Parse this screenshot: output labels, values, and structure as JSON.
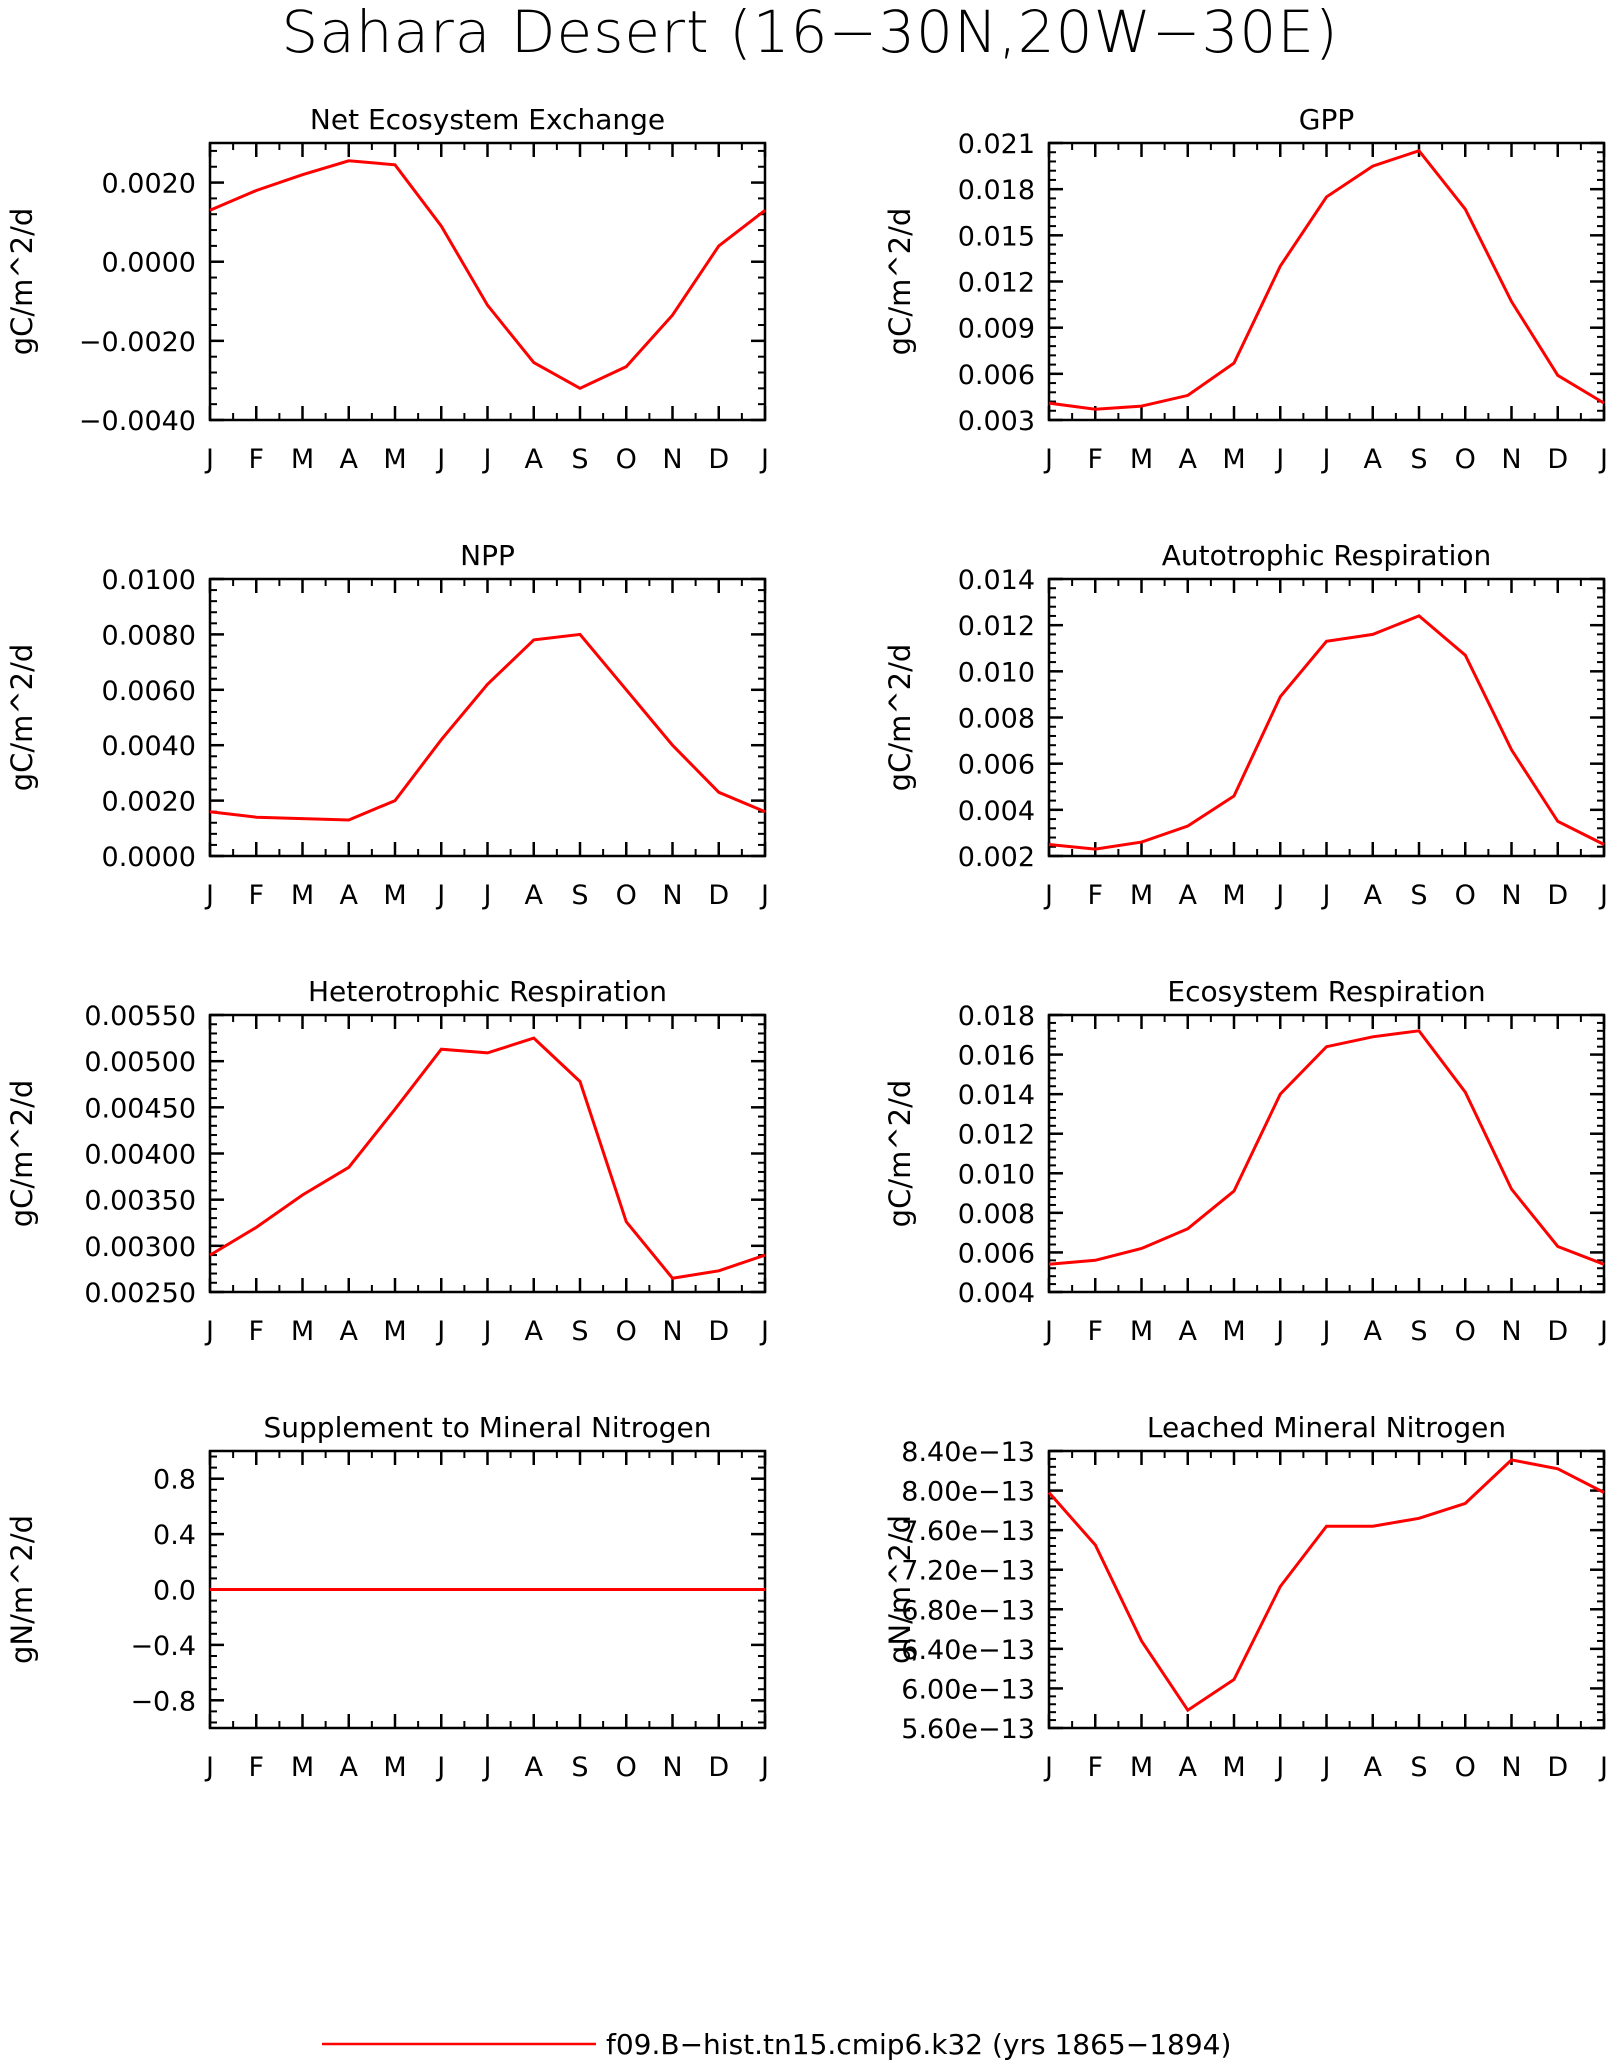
{
  "figure": {
    "title": "Sahara Desert (16−30N,20W−30E)",
    "line_color": "#ff0000",
    "legend": {
      "label": "f09.B−hist.tn15.cmip6.k32 (yrs 1865−1894)"
    }
  },
  "chart_data": [
    {
      "type": "line",
      "title": "Net Ecosystem Exchange",
      "ylabel": "gC/m^2/d",
      "xlabel": "",
      "categories": [
        "J",
        "F",
        "M",
        "A",
        "M",
        "J",
        "J",
        "A",
        "S",
        "O",
        "N",
        "D",
        "J"
      ],
      "ylim": [
        -0.004,
        0.003
      ],
      "yticks": [
        -0.004,
        -0.002,
        0.0,
        0.002
      ],
      "ytick_labels": [
        "−0.0040",
        "−0.0020",
        "0.0000",
        "0.0020"
      ],
      "series": [
        {
          "values": [
            0.0013,
            0.0018,
            0.0022,
            0.00255,
            0.00245,
            0.0009,
            -0.0011,
            -0.00255,
            -0.0032,
            -0.00265,
            -0.00135,
            0.0004,
            0.0013
          ]
        }
      ]
    },
    {
      "type": "line",
      "title": "GPP",
      "ylabel": "gC/m^2/d",
      "xlabel": "",
      "categories": [
        "J",
        "F",
        "M",
        "A",
        "M",
        "J",
        "J",
        "A",
        "S",
        "O",
        "N",
        "D",
        "J"
      ],
      "ylim": [
        0.003,
        0.021
      ],
      "yticks": [
        0.003,
        0.006,
        0.009,
        0.012,
        0.015,
        0.018,
        0.021
      ],
      "ytick_labels": [
        "0.003",
        "0.006",
        "0.009",
        "0.012",
        "0.015",
        "0.018",
        "0.021"
      ],
      "series": [
        {
          "values": [
            0.0041,
            0.0037,
            0.0039,
            0.0046,
            0.0067,
            0.013,
            0.0175,
            0.0195,
            0.0205,
            0.0167,
            0.0107,
            0.0059,
            0.0041
          ]
        }
      ]
    },
    {
      "type": "line",
      "title": "NPP",
      "ylabel": "gC/m^2/d",
      "xlabel": "",
      "categories": [
        "J",
        "F",
        "M",
        "A",
        "M",
        "J",
        "J",
        "A",
        "S",
        "O",
        "N",
        "D",
        "J"
      ],
      "ylim": [
        0.0,
        0.01
      ],
      "yticks": [
        0.0,
        0.002,
        0.004,
        0.006,
        0.008,
        0.01
      ],
      "ytick_labels": [
        "0.0000",
        "0.0020",
        "0.0040",
        "0.0060",
        "0.0080",
        "0.0100"
      ],
      "series": [
        {
          "values": [
            0.0016,
            0.0014,
            0.00135,
            0.0013,
            0.002,
            0.0042,
            0.0062,
            0.0078,
            0.008,
            0.006,
            0.004,
            0.0023,
            0.0016
          ]
        }
      ]
    },
    {
      "type": "line",
      "title": "Autotrophic Respiration",
      "ylabel": "gC/m^2/d",
      "xlabel": "",
      "categories": [
        "J",
        "F",
        "M",
        "A",
        "M",
        "J",
        "J",
        "A",
        "S",
        "O",
        "N",
        "D",
        "J"
      ],
      "ylim": [
        0.002,
        0.014
      ],
      "yticks": [
        0.002,
        0.004,
        0.006,
        0.008,
        0.01,
        0.012,
        0.014
      ],
      "ytick_labels": [
        "0.002",
        "0.004",
        "0.006",
        "0.008",
        "0.010",
        "0.012",
        "0.014"
      ],
      "series": [
        {
          "values": [
            0.0025,
            0.0023,
            0.0026,
            0.0033,
            0.0046,
            0.0089,
            0.0113,
            0.0116,
            0.0124,
            0.0107,
            0.0066,
            0.0035,
            0.0025
          ]
        }
      ]
    },
    {
      "type": "line",
      "title": "Heterotrophic Respiration",
      "ylabel": "gC/m^2/d",
      "xlabel": "",
      "categories": [
        "J",
        "F",
        "M",
        "A",
        "M",
        "J",
        "J",
        "A",
        "S",
        "O",
        "N",
        "D",
        "J"
      ],
      "ylim": [
        0.0025,
        0.0055
      ],
      "yticks": [
        0.0025,
        0.003,
        0.0035,
        0.004,
        0.0045,
        0.005,
        0.0055
      ],
      "ytick_labels": [
        "0.00250",
        "0.00300",
        "0.00350",
        "0.00400",
        "0.00450",
        "0.00500",
        "0.00550"
      ],
      "series": [
        {
          "values": [
            0.0029,
            0.0032,
            0.00355,
            0.00385,
            0.00448,
            0.00513,
            0.00509,
            0.00525,
            0.00478,
            0.00326,
            0.00265,
            0.00273,
            0.0029
          ]
        }
      ]
    },
    {
      "type": "line",
      "title": "Ecosystem Respiration",
      "ylabel": "gC/m^2/d",
      "xlabel": "",
      "categories": [
        "J",
        "F",
        "M",
        "A",
        "M",
        "J",
        "J",
        "A",
        "S",
        "O",
        "N",
        "D",
        "J"
      ],
      "ylim": [
        0.004,
        0.018
      ],
      "yticks": [
        0.004,
        0.006,
        0.008,
        0.01,
        0.012,
        0.014,
        0.016,
        0.018
      ],
      "ytick_labels": [
        "0.004",
        "0.006",
        "0.008",
        "0.010",
        "0.012",
        "0.014",
        "0.016",
        "0.018"
      ],
      "series": [
        {
          "values": [
            0.0054,
            0.0056,
            0.0062,
            0.0072,
            0.0091,
            0.014,
            0.0164,
            0.0169,
            0.0172,
            0.0141,
            0.0092,
            0.0063,
            0.0054
          ]
        }
      ]
    },
    {
      "type": "line",
      "title": "Supplement to Mineral Nitrogen",
      "ylabel": "gN/m^2/d",
      "xlabel": "",
      "categories": [
        "J",
        "F",
        "M",
        "A",
        "M",
        "J",
        "J",
        "A",
        "S",
        "O",
        "N",
        "D",
        "J"
      ],
      "ylim": [
        -1.0,
        1.0
      ],
      "yticks": [
        -0.8,
        -0.4,
        0.0,
        0.4,
        0.8
      ],
      "ytick_labels": [
        "−0.8",
        "−0.4",
        "0.0",
        "0.4",
        "0.8"
      ],
      "series": [
        {
          "values": [
            0,
            0,
            0,
            0,
            0,
            0,
            0,
            0,
            0,
            0,
            0,
            0,
            0
          ]
        }
      ]
    },
    {
      "type": "line",
      "title": "Leached Mineral Nitrogen",
      "ylabel": "gN/m^2/d",
      "xlabel": "",
      "categories": [
        "J",
        "F",
        "M",
        "A",
        "M",
        "J",
        "J",
        "A",
        "S",
        "O",
        "N",
        "D",
        "J"
      ],
      "ylim": [
        5.6e-13,
        8.4e-13
      ],
      "yticks": [
        5.6e-13,
        6e-13,
        6.4e-13,
        6.8e-13,
        7.2e-13,
        7.6e-13,
        8e-13,
        8.4e-13
      ],
      "ytick_labels": [
        "5.60e−13",
        "6.00e−13",
        "6.40e−13",
        "6.80e−13",
        "7.20e−13",
        "7.60e−13",
        "8.00e−13",
        "8.40e−13"
      ],
      "series": [
        {
          "values": [
            7.98e-13,
            7.45e-13,
            6.48e-13,
            5.78e-13,
            6.09e-13,
            7.03e-13,
            7.64e-13,
            7.64e-13,
            7.72e-13,
            7.87e-13,
            8.31e-13,
            8.22e-13,
            7.98e-13
          ]
        }
      ]
    }
  ]
}
